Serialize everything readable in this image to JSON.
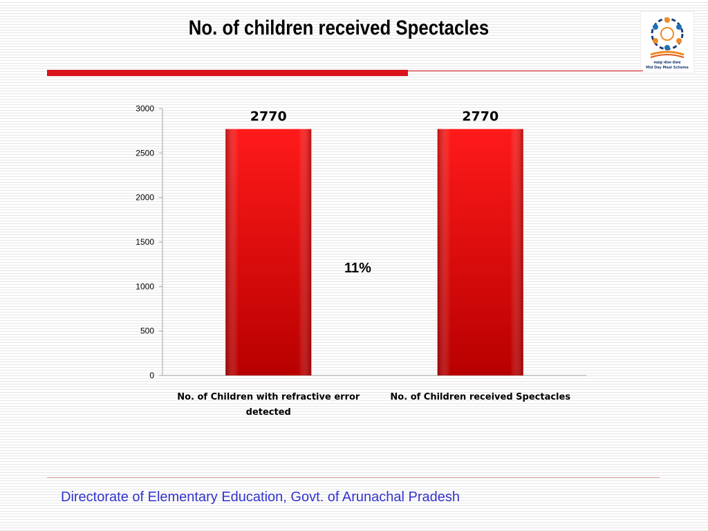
{
  "page": {
    "title": "No. of children received Spectacles",
    "footer": "Directorate of Elementary Education, Govt. of Arunachal Pradesh",
    "annotation": "11%"
  },
  "logo": {
    "caption_hindi": "मध्याह्न भोजन योजना",
    "caption_english": "Mid Day Meal Scheme"
  },
  "colors": {
    "accent_red": "#d9141b",
    "bar_top": "#ff1a1a",
    "bar_bottom": "#b80000",
    "footer_text": "#3333cc"
  },
  "chart_data": {
    "type": "bar",
    "title": "",
    "xlabel": "",
    "ylabel": "",
    "ylim": [
      0,
      3000
    ],
    "yticks": [
      0,
      500,
      1000,
      1500,
      2000,
      2500,
      3000
    ],
    "categories": [
      "No. of Children with refractive error detected",
      "No. of Children received Spectacles"
    ],
    "category_label_lines": [
      [
        "No. of Children with refractive error",
        "detected"
      ],
      [
        "No. of Children received Spectacles"
      ]
    ],
    "values": [
      2770,
      2770
    ],
    "data_labels": [
      "2770",
      "2770"
    ],
    "grid": false,
    "legend": "none"
  }
}
